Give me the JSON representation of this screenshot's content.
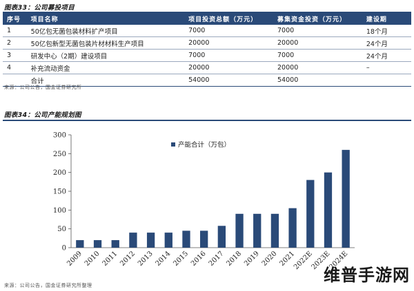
{
  "table_fig": {
    "title": "图表33：公司募投项目",
    "headers": [
      "序号",
      "项目名称",
      "项目投资总额（万元）",
      "募集资金投资（万元）",
      "建设期"
    ],
    "rows": [
      [
        "1",
        "50亿包无菌包装材料扩产项目",
        "7000",
        "7000",
        "18个月"
      ],
      [
        "2",
        "50亿包新型无菌包装片材材料生产项目",
        "20000",
        "20000",
        "24个月"
      ],
      [
        "3",
        "研发中心（2期）建设项目",
        "7000",
        "7000",
        "24个月"
      ],
      [
        "4",
        "补充流动资金",
        "20000",
        "20000",
        "–"
      ],
      [
        "",
        "合计",
        "54000",
        "54000",
        ""
      ]
    ],
    "source": "来源：公司公告，国金证券研究所"
  },
  "chart_fig": {
    "title": "图表34：公司产能规划图",
    "source": "来源：公司公告，国金证券研究所整理"
  },
  "chart_data": {
    "type": "bar",
    "categories": [
      "2009",
      "2010",
      "2011",
      "2012",
      "2013",
      "2014",
      "2015",
      "2016",
      "2017",
      "2018",
      "2019",
      "2020",
      "2021",
      "2022E",
      "2023E",
      "2024E"
    ],
    "series": [
      {
        "name": "产能合计（万包）",
        "values": [
          20,
          20,
          20,
          40,
          40,
          40,
          45,
          45,
          58,
          90,
          90,
          90,
          105,
          180,
          200,
          260
        ]
      }
    ],
    "ylim": [
      0,
      300
    ],
    "yticks": [
      0,
      50,
      100,
      150,
      200,
      250,
      300
    ],
    "grid": false,
    "legend": "top-left",
    "color": "#2a4a78"
  },
  "watermark": "维普手游网"
}
